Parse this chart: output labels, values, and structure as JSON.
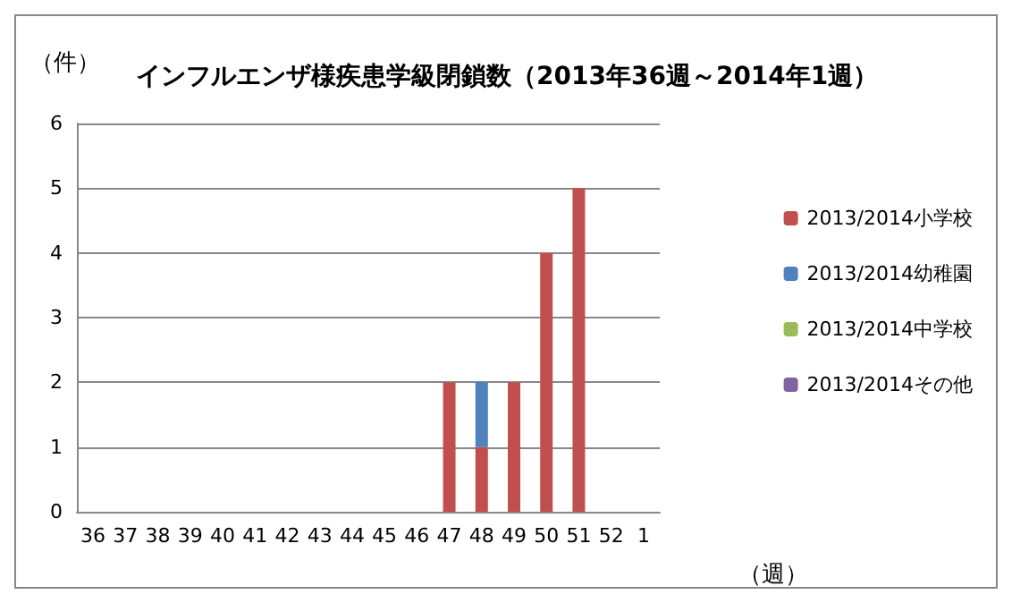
{
  "chart_data": {
    "type": "bar",
    "title": "インフルエンザ様疾患学級閉鎖数（2013年36週～2014年1週）",
    "ylabel": "（件）",
    "xlabel": "（週）",
    "categories": [
      "36",
      "37",
      "38",
      "39",
      "40",
      "41",
      "42",
      "43",
      "44",
      "45",
      "46",
      "47",
      "48",
      "49",
      "50",
      "51",
      "52",
      "1"
    ],
    "series": [
      {
        "name": "2013/2014小学校",
        "color": "#c0504d",
        "values": [
          0,
          0,
          0,
          0,
          0,
          0,
          0,
          0,
          0,
          0,
          0,
          2,
          1,
          2,
          4,
          5,
          0,
          0
        ]
      },
      {
        "name": "2013/2014幼稚園",
        "color": "#4f81bd",
        "values": [
          0,
          0,
          0,
          0,
          0,
          0,
          0,
          0,
          0,
          0,
          0,
          0,
          1,
          0,
          0,
          0,
          0,
          0
        ]
      },
      {
        "name": "2013/2014中学校",
        "color": "#9bbb59",
        "values": [
          0,
          0,
          0,
          0,
          0,
          0,
          0,
          0,
          0,
          0,
          0,
          0,
          0,
          0,
          0,
          0,
          0,
          0
        ]
      },
      {
        "name": "2013/2014その他",
        "color": "#8064a2",
        "values": [
          0,
          0,
          0,
          0,
          0,
          0,
          0,
          0,
          0,
          0,
          0,
          0,
          0,
          0,
          0,
          0,
          0,
          0
        ]
      }
    ],
    "stacked": true,
    "ylim": [
      0,
      6
    ],
    "yticks": [
      0,
      1,
      2,
      3,
      4,
      5,
      6
    ],
    "grid": "y",
    "legend": "right"
  }
}
